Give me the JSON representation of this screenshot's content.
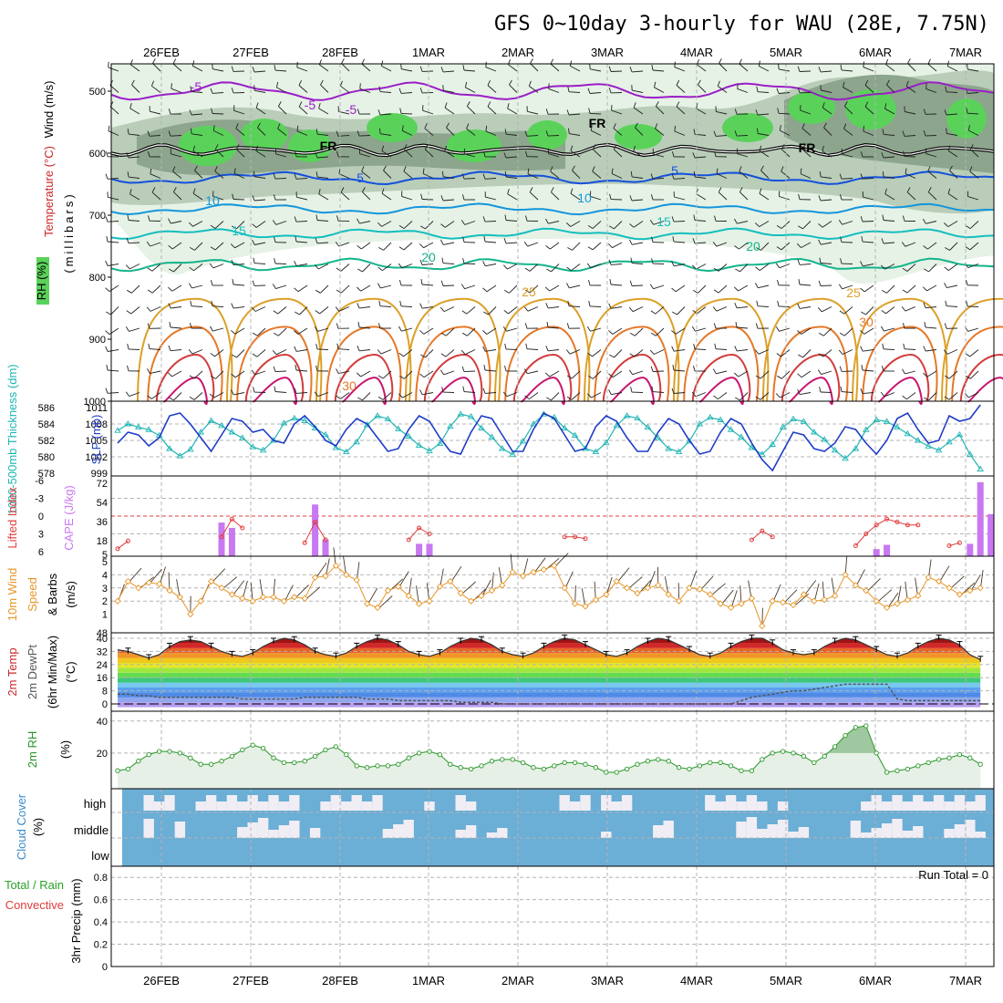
{
  "title": "GFS 0~10day 3-hourly for WAU (28E, 7.75N)",
  "dates": [
    "26FEB",
    "27FEB",
    "28FEB",
    "1MAR",
    "2MAR",
    "3MAR",
    "4MAR",
    "5MAR",
    "6MAR",
    "7MAR"
  ],
  "colors": {
    "frame": "#000000",
    "grid": "#b4b4b4",
    "rh_light": "#e6f2e6",
    "rh_mid": "#b9cdb9",
    "rh_dark": "#8ca58c",
    "rh_bright": "#5ad25a",
    "temp_neg": "#9b1ec8",
    "temp_5": "#1450dc",
    "temp_10": "#1496dc",
    "temp_15": "#14bebe",
    "temp_20": "#14b48c",
    "temp_25": "#dca028",
    "temp_30": "#e67828",
    "temp_35": "#d23c3c",
    "temp_40": "#c8146e",
    "freezing": "#000000",
    "thickness": "#20b4b4",
    "slp": "#1e3cc8",
    "lifted_index": "#e03c3c",
    "cape": "#c878f0",
    "wind_speed": "#e69628",
    "barb": "#4a3a2a",
    "rh2m": "#289628",
    "rh2m_fill": "#e6f0e6",
    "rh2m_fill_dark": "#a0c8a0",
    "cloud_base": "#6baed6",
    "cloud_patch": "#f0eef4",
    "dewpt": "#555555",
    "runtotal": "#000000"
  },
  "panels": {
    "upper_air": {
      "left_labels": [
        "RH (%)",
        "Temperature (°C)",
        "Wind (m/s)"
      ],
      "axis_label": "(millibars)",
      "levels": [
        "500",
        "600",
        "700",
        "800",
        "900",
        "1000"
      ],
      "contour_labels": [
        {
          "text": "-5",
          "level": "temp_neg"
        },
        {
          "text": "-5",
          "level": "temp_neg"
        },
        {
          "text": "-5",
          "level": "temp_neg"
        },
        {
          "text": "FR",
          "level": "freezing"
        },
        {
          "text": "FR",
          "level": "freezing"
        },
        {
          "text": "FR",
          "level": "freezing"
        },
        {
          "text": "5",
          "level": "temp_5"
        },
        {
          "text": "5",
          "level": "temp_5"
        },
        {
          "text": "10",
          "level": "temp_10"
        },
        {
          "text": "10",
          "level": "temp_10"
        },
        {
          "text": "15",
          "level": "temp_15"
        },
        {
          "text": "15",
          "level": "temp_15"
        },
        {
          "text": "20",
          "level": "temp_20"
        },
        {
          "text": "20",
          "level": "temp_20"
        },
        {
          "text": "25",
          "level": "temp_25"
        },
        {
          "text": "25",
          "level": "temp_25"
        },
        {
          "text": "30",
          "level": "temp_30"
        },
        {
          "text": "30",
          "level": "temp_30"
        }
      ]
    },
    "thickness_slp": {
      "left_label": "1000-500mb Thickness (dm)",
      "right_label": "SLP (mb)",
      "left_ticks": [
        "586",
        "584",
        "582",
        "580",
        "578"
      ],
      "right_ticks": [
        "1011",
        "1008",
        "1005",
        "1002",
        "999"
      ]
    },
    "instability": {
      "left_label": "Lifted Index",
      "right_label": "CAPE (J/kg)",
      "left_ticks": [
        "-6",
        "-3",
        "0",
        "3",
        "6"
      ],
      "right_ticks": [
        "72",
        "54",
        "36",
        "18",
        "5"
      ]
    },
    "wind10m": {
      "label_a": "10m Wind",
      "label_b": "Speed",
      "label_c": "& Barbs",
      "unit": "(m/s)",
      "ticks": [
        "5",
        "4",
        "3",
        "2",
        "1",
        "48"
      ]
    },
    "temp2m": {
      "label_a": "2m Temp",
      "label_b": "2m DewPt",
      "label_c": "(6hr Min/Max)",
      "unit": "(°C)",
      "ticks": [
        "40",
        "32",
        "24",
        "16",
        "8",
        "0"
      ]
    },
    "rh2m": {
      "label": "2m RH",
      "unit": "(%)",
      "ticks": [
        "40",
        "20"
      ]
    },
    "cloud": {
      "label": "Cloud Cover",
      "unit": "(%)",
      "rows": [
        "high",
        "middle",
        "low"
      ]
    },
    "precip": {
      "label_a": "Total / Rain",
      "label_b": "Convective",
      "label_c": "3hr Precip (mm)",
      "ticks": [
        "0.8",
        "0.6",
        "0.4",
        "0.2",
        "0"
      ],
      "run_total": "Run Total = 0"
    }
  },
  "chart_data": [
    {
      "type": "line",
      "name": "1000-500mb thickness and SLP",
      "x_unit": "3-hourly steps from 25FEB 12Z",
      "series": [
        {
          "name": "Thickness (dm)",
          "values": [
            583.2,
            584.0,
            583.6,
            583.3,
            582.6,
            581.0,
            580.1,
            580.9,
            583.0,
            584.4,
            583.8,
            583.0,
            582.3,
            581.2,
            580.8,
            582.0,
            584.1,
            584.7,
            584.4,
            583.5,
            582.7,
            581.1,
            580.6,
            581.8,
            583.9,
            585.0,
            584.6,
            583.4,
            582.5,
            581.4,
            580.7,
            581.6,
            583.7,
            585.2,
            584.9,
            583.5,
            582.4,
            581.0,
            580.3,
            581.9,
            584.0,
            585.2,
            584.8,
            583.5,
            582.6,
            581.0,
            580.6,
            581.7,
            583.8,
            585.0,
            584.7,
            583.6,
            582.3,
            581.0,
            580.6,
            581.9,
            584.0,
            584.8,
            584.5,
            583.3,
            582.4,
            581.1,
            580.3,
            581.5,
            583.6,
            584.6,
            584.3,
            583.0,
            582.1,
            580.8,
            579.8,
            581.0,
            583.3,
            584.5,
            584.3,
            583.6,
            582.8,
            582.0,
            581.3,
            580.8,
            581.8,
            582.7,
            580.3,
            578.5
          ]
        },
        {
          "name": "SLP (mb)",
          "values": [
            1004.5,
            1006.5,
            1006.0,
            1004.0,
            1005.5,
            1009.5,
            1010.0,
            1008.0,
            1005.5,
            1003.0,
            1006.0,
            1009.0,
            1008.5,
            1006.5,
            1007.0,
            1005.0,
            1004.5,
            1008.0,
            1009.5,
            1007.5,
            1005.0,
            1004.0,
            1007.0,
            1009.0,
            1008.0,
            1005.5,
            1003.0,
            1003.5,
            1007.0,
            1009.5,
            1008.5,
            1005.5,
            1003.0,
            1002.5,
            1006.5,
            1009.5,
            1009.0,
            1006.0,
            1003.0,
            1003.0,
            1007.0,
            1010.0,
            1009.0,
            1006.0,
            1003.0,
            1003.5,
            1007.5,
            1009.5,
            1008.5,
            1005.5,
            1003.0,
            1003.0,
            1006.5,
            1009.0,
            1008.0,
            1005.0,
            1002.5,
            1003.0,
            1006.5,
            1009.0,
            1008.0,
            1004.5,
            1001.5,
            999.5,
            1003.0,
            1006.5,
            1006.0,
            1003.5,
            1003.0,
            1004.5,
            1007.5,
            1007.0,
            1004.5,
            1002.5,
            1005.0,
            1009.0,
            1010.0,
            1007.0,
            1004.5,
            1005.0,
            1009.5,
            1008.5,
            1009.0,
            1011.5
          ]
        }
      ]
    },
    {
      "type": "bar",
      "name": "Lifted index and CAPE",
      "series": [
        {
          "name": "Lifted Index",
          "values": [
            5.5,
            4.2,
            6.0,
            6.0,
            6.0,
            6.0,
            6.0,
            6.0,
            6.0,
            6.0,
            3.5,
            0.5,
            2.0,
            6.0,
            6.0,
            6.0,
            6.0,
            6.0,
            4.5,
            1.0,
            4.0,
            6.0,
            6.0,
            6.0,
            6.0,
            6.0,
            6.0,
            6.0,
            4.0,
            2.0,
            3.0,
            6.0,
            6.0,
            6.0,
            6.0,
            6.0,
            6.0,
            6.0,
            6.0,
            6.0,
            6.0,
            6.0,
            6.0,
            3.5,
            3.5,
            3.8,
            6.0,
            6.0,
            6.0,
            6.0,
            6.0,
            6.0,
            6.0,
            6.0,
            6.0,
            6.0,
            6.0,
            6.0,
            6.0,
            6.0,
            6.0,
            4.0,
            2.5,
            3.5,
            6.0,
            6.0,
            6.0,
            6.0,
            6.0,
            6.0,
            6.0,
            5.0,
            3.0,
            1.5,
            0.5,
            1.0,
            1.5,
            1.5,
            6.0,
            6.0,
            5.0,
            4.5,
            6.0,
            6.0
          ]
        },
        {
          "name": "CAPE (J/kg)",
          "values": [
            0,
            0,
            0,
            0,
            0,
            0,
            0,
            0,
            0,
            0,
            30,
            25,
            0,
            0,
            0,
            0,
            0,
            0,
            0,
            47,
            14,
            0,
            0,
            0,
            0,
            0,
            0,
            0,
            0,
            10,
            10,
            0,
            0,
            0,
            0,
            0,
            0,
            0,
            0,
            0,
            0,
            0,
            0,
            0,
            0,
            0,
            0,
            0,
            0,
            0,
            0,
            0,
            0,
            0,
            0,
            0,
            0,
            0,
            0,
            0,
            0,
            0,
            0,
            0,
            0,
            0,
            0,
            0,
            0,
            0,
            0,
            0,
            0,
            5,
            9,
            0,
            0,
            0,
            0,
            0,
            0,
            0,
            10,
            68,
            38,
            0
          ]
        }
      ]
    },
    {
      "type": "line",
      "name": "10m wind speed",
      "series": [
        {
          "name": "Wind speed (m/s)",
          "values": [
            2.0,
            3.5,
            3.0,
            3.4,
            3.3,
            2.8,
            2.3,
            1.0,
            2.0,
            3.5,
            3.0,
            2.5,
            2.2,
            2.0,
            2.3,
            2.3,
            2.0,
            2.3,
            2.2,
            3.8,
            3.9,
            4.7,
            4.0,
            3.6,
            1.8,
            1.5,
            2.8,
            3.1,
            2.4,
            1.8,
            2.0,
            3.1,
            3.5,
            2.6,
            2.0,
            2.4,
            2.8,
            3.2,
            4.2,
            3.9,
            4.2,
            4.4,
            4.7,
            3.0,
            1.8,
            1.6,
            2.1,
            2.5,
            3.5,
            3.0,
            2.6,
            3.0,
            3.2,
            2.5,
            2.0,
            3.0,
            2.9,
            2.5,
            1.8,
            1.5,
            1.8,
            2.2,
            0.1,
            2.0,
            1.9,
            1.7,
            2.5,
            2.0,
            2.1,
            2.4,
            4.0,
            3.2,
            2.8,
            2.0,
            1.5,
            1.8,
            2.1,
            2.4,
            3.8,
            3.5,
            3.0,
            2.5,
            2.8,
            3.0
          ]
        }
      ]
    },
    {
      "type": "area",
      "name": "2m temperature",
      "series": [
        {
          "name": "2m Temp (°C)",
          "values": [
            33,
            32,
            30,
            28,
            30,
            35,
            38,
            39,
            38,
            35,
            32,
            30,
            29,
            31,
            35,
            38,
            40,
            39,
            36,
            32,
            30,
            29,
            31,
            35,
            38,
            40,
            39,
            36,
            32,
            30,
            29,
            31,
            35,
            38,
            40,
            39,
            36,
            32,
            30,
            29,
            31,
            35,
            38,
            40,
            39,
            36,
            33,
            30,
            29,
            31,
            35,
            38,
            40,
            39,
            36,
            33,
            30,
            29,
            31,
            35,
            38,
            40,
            40,
            37,
            33,
            31,
            30,
            31,
            35,
            38,
            40,
            39,
            36,
            33,
            30,
            29,
            31,
            35,
            38,
            40,
            39,
            36,
            30,
            27
          ]
        },
        {
          "name": "2m DewPt (°C)",
          "values": [
            6,
            6,
            5,
            5,
            4,
            4,
            4,
            4,
            4,
            4,
            4,
            4,
            3,
            3,
            3,
            3,
            3,
            3,
            4,
            4,
            4,
            4,
            4,
            4,
            3,
            3,
            3,
            2,
            2,
            2,
            2,
            2,
            2,
            1,
            1,
            1,
            1,
            0,
            0,
            0,
            0,
            0,
            0,
            0,
            0,
            0,
            0,
            0,
            0,
            0,
            0,
            0,
            0,
            0,
            0,
            0,
            0,
            0,
            0,
            0,
            2,
            4,
            5,
            6,
            7,
            8,
            8,
            9,
            10,
            11,
            12,
            12,
            12,
            12,
            12,
            3,
            2,
            2,
            2,
            2,
            2,
            2,
            2,
            2
          ]
        }
      ]
    },
    {
      "type": "area",
      "name": "2m RH",
      "series": [
        {
          "name": "2m RH (%)",
          "values": [
            9,
            10,
            15,
            19,
            21,
            21,
            20,
            17,
            13,
            13,
            15,
            18,
            22,
            25,
            23,
            17,
            14,
            14,
            15,
            18,
            22,
            24,
            19,
            12,
            11,
            12,
            12,
            13,
            17,
            20,
            21,
            19,
            13,
            11,
            10,
            12,
            15,
            16,
            16,
            14,
            11,
            10,
            12,
            14,
            14,
            13,
            11,
            8,
            8,
            10,
            13,
            15,
            16,
            15,
            11,
            10,
            12,
            14,
            14,
            12,
            9,
            9,
            16,
            20,
            21,
            20,
            18,
            14,
            18,
            24,
            31,
            36,
            37,
            20,
            8,
            9,
            10,
            12,
            14,
            16,
            17,
            19,
            17,
            13
          ]
        }
      ]
    },
    {
      "type": "bar",
      "name": "3hr precip",
      "series": [
        {
          "name": "Total / Rain (mm)",
          "values": [
            0,
            0,
            0,
            0,
            0,
            0,
            0,
            0,
            0,
            0,
            0,
            0,
            0,
            0,
            0,
            0,
            0,
            0,
            0,
            0,
            0,
            0,
            0,
            0,
            0,
            0,
            0,
            0,
            0,
            0,
            0,
            0,
            0,
            0,
            0,
            0,
            0,
            0,
            0,
            0,
            0,
            0,
            0,
            0,
            0,
            0,
            0,
            0,
            0,
            0,
            0,
            0,
            0,
            0,
            0,
            0,
            0,
            0,
            0,
            0,
            0,
            0,
            0,
            0,
            0,
            0,
            0,
            0,
            0,
            0,
            0,
            0,
            0,
            0,
            0,
            0,
            0,
            0,
            0,
            0,
            0,
            0,
            0,
            0
          ]
        }
      ],
      "ylim": [
        0,
        0.9
      ]
    }
  ]
}
